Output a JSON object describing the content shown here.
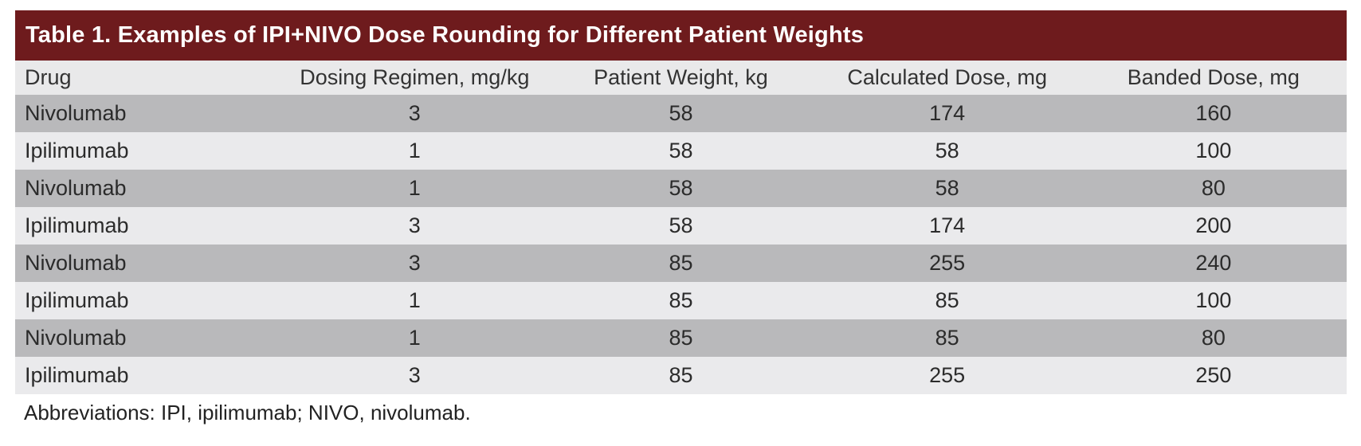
{
  "table": {
    "title": "Table 1. Examples of IPI+NIVO Dose Rounding for Different Patient Weights",
    "columns": [
      "Drug",
      "Dosing Regimen, mg/kg",
      "Patient Weight, kg",
      "Calculated Dose, mg",
      "Banded Dose, mg"
    ],
    "rows": [
      {
        "cells": [
          "Nivolumab",
          "3",
          "58",
          "174",
          "160"
        ]
      },
      {
        "cells": [
          "Ipilimumab",
          "1",
          "58",
          "58",
          "100"
        ]
      },
      {
        "cells": [
          "Nivolumab",
          "1",
          "58",
          "58",
          "80"
        ]
      },
      {
        "cells": [
          "Ipilimumab",
          "3",
          "58",
          "174",
          "200"
        ]
      },
      {
        "cells": [
          "Nivolumab",
          "3",
          "85",
          "255",
          "240"
        ]
      },
      {
        "cells": [
          "Ipilimumab",
          "1",
          "85",
          "85",
          "100"
        ]
      },
      {
        "cells": [
          "Nivolumab",
          "1",
          "85",
          "85",
          "80"
        ]
      },
      {
        "cells": [
          "Ipilimumab",
          "3",
          "85",
          "255",
          "250"
        ]
      }
    ],
    "footnote": "Abbreviations: IPI, ipilimumab; NIVO, nivolumab.",
    "colors": {
      "title_bar": "#6e1b1d",
      "header_bg": "#e9e9ea",
      "row_dark": "#b9b9bb",
      "row_light": "#eaeaec"
    }
  }
}
